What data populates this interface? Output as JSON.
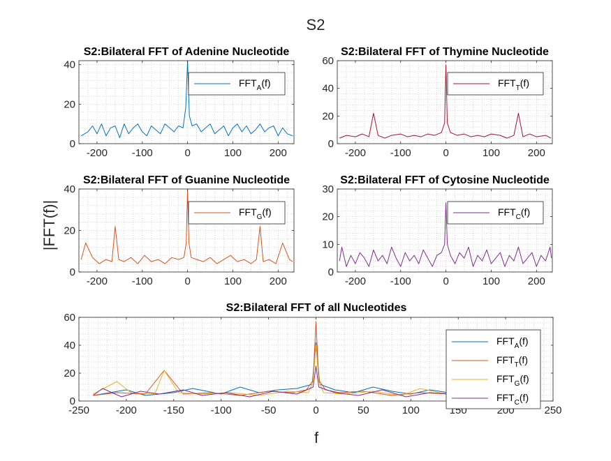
{
  "figure": {
    "suptitle": "S2",
    "ylabel": "|FFT(f)|",
    "xlabel": "f"
  },
  "chart_data": [
    {
      "type": "line",
      "title": "S2:Bilateral FFT of Adenine Nucleotide",
      "xlim": [
        -240,
        235
      ],
      "ylim": [
        0,
        42
      ],
      "xticks": [
        -200,
        -100,
        0,
        100,
        200
      ],
      "yticks": [
        0,
        20,
        40
      ],
      "grid": true,
      "legend_position": "top-right",
      "series": [
        {
          "name": "FFT_A(f)",
          "legend_main": "FFT",
          "legend_sub": "A",
          "legend_tail": "(f)",
          "color": "#0072BD",
          "x": [
            -235,
            -220,
            -210,
            -200,
            -190,
            -180,
            -170,
            -160,
            -150,
            -140,
            -130,
            -120,
            -110,
            -100,
            -90,
            -80,
            -70,
            -60,
            -50,
            -40,
            -30,
            -20,
            -10,
            -4,
            0,
            4,
            10,
            20,
            30,
            40,
            50,
            60,
            70,
            80,
            90,
            100,
            110,
            120,
            130,
            140,
            150,
            160,
            170,
            180,
            190,
            200,
            210,
            220,
            232
          ],
          "y": [
            4,
            6,
            9,
            5,
            10,
            4,
            8,
            9,
            3,
            10,
            5,
            8,
            10,
            6,
            4,
            9,
            7,
            5,
            10,
            8,
            6,
            9,
            8,
            18,
            42,
            14,
            9,
            10,
            6,
            8,
            10,
            5,
            7,
            9,
            4,
            8,
            10,
            6,
            9,
            5,
            7,
            10,
            6,
            8,
            9,
            4,
            8,
            5,
            4
          ]
        }
      ]
    },
    {
      "type": "line",
      "title": "S2:Bilateral FFT of Thymine Nucleotide",
      "xlim": [
        -240,
        235
      ],
      "ylim": [
        0,
        60
      ],
      "xticks": [
        -200,
        -100,
        0,
        100,
        200
      ],
      "yticks": [
        0,
        20,
        40,
        60
      ],
      "grid": true,
      "legend_position": "top-right",
      "series": [
        {
          "name": "FFT_T(f)",
          "legend_main": "FFT",
          "legend_sub": "T",
          "legend_tail": "(f)",
          "color": "#A2142F",
          "x": [
            -235,
            -220,
            -200,
            -185,
            -170,
            -160,
            -150,
            -135,
            -120,
            -100,
            -85,
            -70,
            -55,
            -40,
            -25,
            -10,
            -3,
            0,
            3,
            10,
            25,
            40,
            55,
            70,
            85,
            100,
            120,
            135,
            150,
            160,
            170,
            185,
            200,
            220,
            232
          ],
          "y": [
            4,
            6,
            5,
            7,
            5,
            22,
            6,
            4,
            6,
            7,
            5,
            6,
            5,
            7,
            6,
            8,
            15,
            57,
            15,
            8,
            6,
            7,
            5,
            6,
            5,
            7,
            6,
            4,
            6,
            22,
            5,
            7,
            5,
            6,
            4
          ]
        }
      ]
    },
    {
      "type": "line",
      "title": "S2:Bilateral FFT of Guanine Nucleotide",
      "xlim": [
        -240,
        235
      ],
      "ylim": [
        0,
        40
      ],
      "xticks": [
        -200,
        -100,
        0,
        100,
        200
      ],
      "yticks": [
        0,
        20,
        40
      ],
      "grid": true,
      "legend_position": "top-right",
      "series": [
        {
          "name": "FFT_G(f)",
          "legend_main": "FFT",
          "legend_sub": "G",
          "legend_tail": "(f)",
          "color": "#D95319",
          "x": [
            -235,
            -225,
            -210,
            -195,
            -180,
            -167,
            -160,
            -152,
            -140,
            -125,
            -110,
            -95,
            -80,
            -65,
            -50,
            -35,
            -20,
            -8,
            -3,
            0,
            3,
            8,
            20,
            35,
            50,
            65,
            80,
            95,
            110,
            125,
            140,
            152,
            160,
            167,
            180,
            195,
            210,
            225,
            232
          ],
          "y": [
            6,
            14,
            7,
            4,
            6,
            5,
            22,
            6,
            5,
            7,
            4,
            8,
            5,
            6,
            4,
            7,
            6,
            7,
            14,
            40,
            14,
            7,
            6,
            5,
            7,
            4,
            6,
            8,
            5,
            6,
            4,
            6,
            22,
            5,
            6,
            4,
            14,
            6,
            5
          ]
        }
      ]
    },
    {
      "type": "line",
      "title": "S2:Bilateral FFT of Cytosine Nucleotide",
      "xlim": [
        -240,
        235
      ],
      "ylim": [
        0,
        30
      ],
      "xticks": [
        -200,
        -100,
        0,
        100,
        200
      ],
      "yticks": [
        0,
        10,
        20,
        30
      ],
      "grid": true,
      "legend_position": "top-right",
      "series": [
        {
          "name": "FFT_C(f)",
          "legend_main": "FFT",
          "legend_sub": "C",
          "legend_tail": "(f)",
          "color": "#7E2F8E",
          "x": [
            -235,
            -230,
            -220,
            -210,
            -200,
            -190,
            -180,
            -170,
            -160,
            -150,
            -140,
            -130,
            -120,
            -110,
            -100,
            -90,
            -80,
            -70,
            -60,
            -50,
            -40,
            -30,
            -20,
            -10,
            -3,
            0,
            3,
            10,
            20,
            30,
            40,
            50,
            60,
            70,
            80,
            90,
            100,
            110,
            120,
            130,
            140,
            150,
            160,
            170,
            180,
            190,
            200,
            210,
            220,
            230,
            233
          ],
          "y": [
            4,
            9,
            2,
            6,
            3,
            7,
            5,
            2,
            8,
            4,
            6,
            3,
            9,
            5,
            2,
            7,
            4,
            6,
            3,
            8,
            5,
            2,
            6,
            7,
            10,
            25,
            10,
            6,
            3,
            7,
            5,
            9,
            2,
            6,
            4,
            8,
            3,
            5,
            7,
            2,
            6,
            4,
            9,
            3,
            5,
            7,
            2,
            6,
            4,
            9,
            5
          ]
        }
      ]
    },
    {
      "type": "line",
      "title": "S2:Bilateral FFT of all Nucleotides",
      "xlim": [
        -250,
        250
      ],
      "ylim": [
        0,
        60
      ],
      "xticks": [
        -250,
        -200,
        -150,
        -100,
        -50,
        0,
        50,
        100,
        150,
        200,
        250
      ],
      "yticks": [
        0,
        20,
        40,
        60
      ],
      "grid": true,
      "legend_position": "bottom-right",
      "series": [
        {
          "name": "FFT_A(f)",
          "legend_main": "FFT",
          "legend_sub": "A",
          "legend_tail": "(f)",
          "color": "#0072BD",
          "x": [
            -235,
            -200,
            -180,
            -150,
            -130,
            -100,
            -80,
            -60,
            -40,
            -20,
            -4,
            0,
            4,
            20,
            40,
            60,
            80,
            100,
            120,
            140,
            160,
            180,
            200,
            220,
            232
          ],
          "y": [
            4,
            8,
            4,
            6,
            9,
            5,
            10,
            6,
            8,
            9,
            12,
            42,
            12,
            8,
            6,
            10,
            7,
            5,
            8,
            6,
            4,
            7,
            5,
            6,
            4
          ]
        },
        {
          "name": "FFT_T(f)",
          "legend_main": "FFT",
          "legend_sub": "T",
          "legend_tail": "(f)",
          "color": "#D95319",
          "x": [
            -235,
            -210,
            -180,
            -160,
            -140,
            -110,
            -80,
            -50,
            -25,
            -10,
            -3,
            0,
            3,
            10,
            25,
            50,
            80,
            110,
            140,
            160,
            180,
            210,
            232
          ],
          "y": [
            4,
            6,
            5,
            22,
            5,
            6,
            4,
            7,
            6,
            8,
            15,
            57,
            15,
            8,
            6,
            7,
            4,
            6,
            5,
            9,
            5,
            6,
            4
          ]
        },
        {
          "name": "FFT_G(f)",
          "legend_main": "FFT",
          "legend_sub": "G",
          "legend_tail": "(f)",
          "color": "#EDB120",
          "x": [
            -235,
            -210,
            -195,
            -170,
            -160,
            -145,
            -120,
            -90,
            -60,
            -30,
            -8,
            -3,
            0,
            3,
            8,
            30,
            60,
            90,
            110,
            130,
            160,
            180,
            210,
            232
          ],
          "y": [
            5,
            14,
            6,
            5,
            22,
            6,
            5,
            6,
            4,
            7,
            6,
            14,
            40,
            14,
            6,
            5,
            7,
            4,
            9,
            6,
            5,
            6,
            7,
            5
          ]
        },
        {
          "name": "FFT_C(f)",
          "legend_main": "FFT",
          "legend_sub": "C",
          "legend_tail": "(f)",
          "color": "#7E2F8E",
          "x": [
            -235,
            -225,
            -205,
            -185,
            -165,
            -140,
            -120,
            -95,
            -70,
            -45,
            -20,
            -3,
            0,
            3,
            20,
            45,
            70,
            95,
            120,
            140,
            165,
            185,
            205,
            225,
            232
          ],
          "y": [
            4,
            9,
            3,
            7,
            5,
            8,
            4,
            6,
            3,
            7,
            5,
            10,
            25,
            10,
            6,
            4,
            8,
            3,
            6,
            5,
            8,
            4,
            6,
            9,
            5
          ]
        }
      ]
    }
  ]
}
